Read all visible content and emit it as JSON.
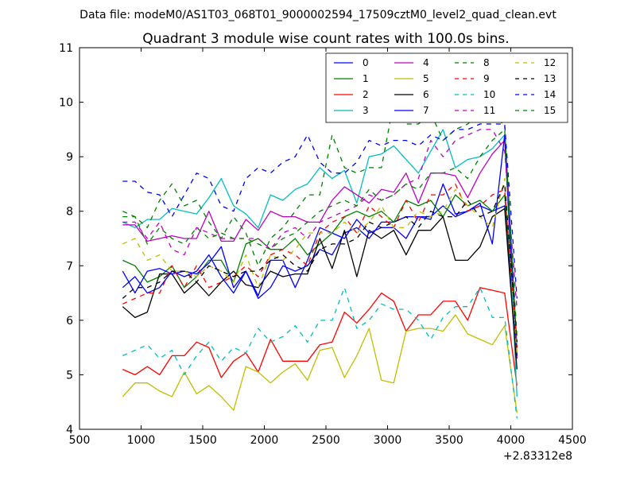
{
  "suptitle": "Data file: modeM0/AS1T03_068T01_9000002594_17509cztM0_level2_quad_clean.evt",
  "chart_data": {
    "type": "line",
    "title": "Quadrant 3 module wise count rates with 100.0s bins.",
    "xlabel": "",
    "ylabel": "",
    "offset_label": "+2.83312e8",
    "xlim": [
      500,
      4500
    ],
    "ylim": [
      4,
      11
    ],
    "x_ticks": [
      500,
      1000,
      1500,
      2000,
      2500,
      3000,
      3500,
      4000,
      4500
    ],
    "y_ticks": [
      4,
      5,
      6,
      7,
      8,
      9,
      10,
      11
    ],
    "x": [
      850,
      950,
      1050,
      1150,
      1250,
      1350,
      1450,
      1550,
      1650,
      1750,
      1850,
      1950,
      2050,
      2150,
      2250,
      2350,
      2450,
      2550,
      2650,
      2750,
      2850,
      2950,
      3050,
      3150,
      3250,
      3350,
      3450,
      3550,
      3650,
      3750,
      3850,
      3950,
      4050
    ],
    "series": [
      {
        "name": "0",
        "color": "#0000ff",
        "dash": "solid",
        "values": [
          6.6,
          6.8,
          6.5,
          6.6,
          6.9,
          6.8,
          6.9,
          7.2,
          6.8,
          6.5,
          6.9,
          6.4,
          6.6,
          7.0,
          6.9,
          7.0,
          7.3,
          7.2,
          7.6,
          7.7,
          7.5,
          7.8,
          7.8,
          7.9,
          7.9,
          7.9,
          8.1,
          7.9,
          8.0,
          8.1,
          8.0,
          8.1,
          5.4
        ]
      },
      {
        "name": "1",
        "color": "#008000",
        "dash": "solid",
        "values": [
          7.1,
          7.0,
          6.7,
          6.8,
          7.0,
          6.6,
          6.8,
          7.1,
          7.1,
          6.7,
          7.4,
          7.5,
          7.3,
          7.3,
          7.5,
          7.2,
          7.4,
          7.6,
          7.9,
          8.0,
          7.9,
          8.0,
          7.8,
          8.2,
          8.1,
          8.2,
          7.9,
          8.3,
          8.1,
          8.2,
          8.0,
          8.3,
          5.5
        ]
      },
      {
        "name": "2",
        "color": "#ff0000",
        "dash": "solid",
        "values": [
          5.1,
          5.0,
          5.15,
          5.0,
          5.35,
          5.35,
          5.6,
          5.5,
          4.95,
          5.25,
          5.4,
          5.05,
          5.65,
          5.25,
          5.25,
          5.25,
          5.55,
          5.6,
          6.15,
          5.95,
          6.2,
          6.5,
          6.35,
          5.8,
          6.1,
          6.1,
          6.35,
          6.35,
          6.0,
          6.6,
          6.55,
          6.5,
          4.8
        ]
      },
      {
        "name": "3",
        "color": "#00bfbf",
        "dash": "solid",
        "values": [
          7.8,
          7.7,
          7.85,
          7.85,
          8.05,
          8.0,
          7.95,
          8.25,
          8.6,
          8.1,
          7.95,
          7.7,
          8.3,
          8.2,
          8.4,
          8.5,
          8.8,
          8.6,
          8.75,
          8.15,
          9.0,
          9.05,
          9.2,
          8.95,
          8.7,
          9.1,
          9.5,
          8.8,
          8.95,
          9.0,
          9.15,
          9.4,
          4.6
        ]
      },
      {
        "name": "4",
        "color": "#bf00bf",
        "dash": "solid",
        "values": [
          7.75,
          7.75,
          7.45,
          7.5,
          7.55,
          7.5,
          7.5,
          8.0,
          7.45,
          7.45,
          7.85,
          7.65,
          8.0,
          7.9,
          7.9,
          7.8,
          7.8,
          8.2,
          8.45,
          8.3,
          8.15,
          8.4,
          8.35,
          8.7,
          8.15,
          8.7,
          8.7,
          8.65,
          8.25,
          8.7,
          9.05,
          9.3,
          5.3
        ]
      },
      {
        "name": "5",
        "color": "#bfbf00",
        "dash": "solid",
        "values": [
          4.6,
          4.85,
          4.85,
          4.7,
          4.6,
          5.05,
          4.65,
          4.8,
          4.6,
          4.35,
          5.15,
          5.05,
          4.85,
          5.05,
          5.2,
          4.9,
          5.45,
          5.5,
          4.95,
          5.35,
          5.85,
          4.9,
          4.85,
          5.8,
          5.85,
          5.85,
          5.8,
          6.1,
          5.75,
          5.65,
          5.55,
          5.9,
          4.3
        ]
      },
      {
        "name": "6",
        "color": "#000000",
        "dash": "solid",
        "values": [
          6.25,
          6.05,
          6.15,
          6.85,
          6.85,
          6.5,
          6.7,
          6.45,
          6.7,
          6.9,
          6.65,
          6.6,
          6.9,
          6.8,
          6.85,
          6.85,
          7.5,
          6.95,
          7.65,
          6.8,
          7.65,
          7.5,
          7.65,
          7.2,
          7.65,
          7.65,
          7.9,
          7.1,
          7.1,
          7.35,
          7.9,
          8.05,
          5.1
        ]
      },
      {
        "name": "7",
        "color": "#0000ff",
        "dash": "solid",
        "values": [
          6.9,
          6.5,
          6.9,
          6.95,
          6.85,
          6.9,
          6.85,
          7.05,
          7.35,
          6.6,
          6.9,
          6.45,
          7.1,
          7.1,
          6.6,
          7.1,
          7.7,
          7.6,
          7.5,
          7.85,
          7.6,
          7.7,
          7.7,
          7.5,
          7.9,
          7.85,
          8.5,
          7.95,
          8.0,
          8.15,
          7.4,
          9.4,
          5.35
        ]
      },
      {
        "name": "8",
        "color": "#008000",
        "dash": "dashed",
        "values": [
          8.0,
          7.9,
          7.7,
          8.2,
          8.5,
          8.1,
          8.2,
          7.8,
          7.5,
          7.9,
          7.6,
          7.0,
          7.5,
          7.7,
          8.0,
          8.3,
          8.3,
          9.4,
          8.8,
          8.7,
          8.8,
          8.8,
          10.0,
          9.6,
          9.6,
          9.8,
          9.3,
          9.5,
          9.6,
          9.8,
          9.7,
          9.6,
          5.5
        ]
      },
      {
        "name": "9",
        "color": "#ff0000",
        "dash": "dashed",
        "values": [
          6.3,
          6.4,
          6.5,
          6.5,
          7.0,
          6.6,
          7.0,
          6.6,
          6.7,
          6.8,
          7.0,
          6.8,
          7.2,
          7.3,
          7.2,
          7.0,
          7.6,
          7.8,
          7.9,
          7.6,
          8.1,
          7.9,
          7.7,
          8.2,
          7.8,
          8.3,
          8.3,
          8.5,
          8.0,
          8.1,
          8.3,
          8.4,
          5.5
        ]
      },
      {
        "name": "10",
        "color": "#00bfbf",
        "dash": "dashed",
        "values": [
          5.35,
          5.45,
          5.55,
          5.3,
          5.45,
          5.0,
          5.35,
          5.6,
          5.25,
          5.5,
          5.4,
          5.85,
          5.6,
          5.7,
          5.9,
          5.6,
          6.0,
          6.0,
          6.6,
          5.85,
          6.0,
          6.3,
          6.2,
          6.2,
          6.0,
          5.65,
          6.05,
          6.25,
          6.25,
          6.6,
          6.05,
          6.05,
          4.2
        ]
      },
      {
        "name": "11",
        "color": "#bf00bf",
        "dash": "dashed",
        "values": [
          7.8,
          7.8,
          7.5,
          7.8,
          7.3,
          7.2,
          7.7,
          7.6,
          7.5,
          7.5,
          7.5,
          7.5,
          7.3,
          7.6,
          7.7,
          7.5,
          7.8,
          7.9,
          8.0,
          8.1,
          8.3,
          8.2,
          8.3,
          8.5,
          8.6,
          9.3,
          9.0,
          9.3,
          9.4,
          9.5,
          9.5,
          9.1,
          6.2
        ]
      },
      {
        "name": "12",
        "color": "#bfbf00",
        "dash": "dashed",
        "values": [
          7.4,
          7.5,
          7.1,
          7.2,
          6.9,
          6.9,
          6.8,
          7.0,
          6.9,
          6.7,
          7.2,
          6.6,
          7.2,
          7.1,
          7.3,
          7.6,
          7.6,
          7.6,
          7.8,
          7.6,
          7.8,
          8.1,
          7.7,
          7.7,
          8.0,
          7.9,
          8.0,
          8.4,
          8.1,
          7.9,
          7.7,
          8.6,
          5.4
        ]
      },
      {
        "name": "13",
        "color": "#000000",
        "dash": "dashed",
        "values": [
          6.4,
          6.6,
          6.6,
          6.7,
          6.9,
          6.9,
          6.7,
          7.0,
          6.9,
          6.8,
          6.9,
          6.9,
          7.1,
          7.2,
          7.0,
          6.9,
          7.3,
          7.4,
          7.4,
          7.5,
          7.8,
          7.7,
          7.8,
          7.9,
          7.7,
          8.0,
          7.9,
          7.9,
          8.2,
          7.9,
          8.0,
          8.5,
          5.6
        ]
      },
      {
        "name": "14",
        "color": "#0000ff",
        "dash": "dashed",
        "values": [
          8.55,
          8.55,
          8.35,
          8.3,
          7.9,
          8.3,
          8.7,
          8.6,
          8.1,
          8.0,
          8.6,
          8.8,
          8.7,
          8.9,
          9.0,
          9.4,
          8.9,
          8.7,
          8.7,
          8.9,
          9.3,
          9.2,
          9.3,
          9.3,
          9.2,
          9.4,
          9.3,
          9.5,
          9.5,
          9.6,
          9.6,
          9.6,
          6.4
        ]
      },
      {
        "name": "15",
        "color": "#008000",
        "dash": "dashed",
        "values": [
          7.9,
          7.9,
          7.4,
          7.7,
          7.5,
          7.4,
          7.7,
          7.5,
          7.6,
          7.5,
          7.5,
          7.4,
          7.3,
          7.5,
          7.6,
          7.8,
          8.0,
          8.1,
          8.2,
          8.1,
          8.4,
          8.2,
          8.3,
          8.5,
          8.4,
          8.7,
          8.7,
          8.8,
          8.6,
          9.0,
          9.3,
          9.5,
          5.7
        ]
      }
    ],
    "legend": {
      "position": "top-right",
      "columns": 4
    }
  }
}
